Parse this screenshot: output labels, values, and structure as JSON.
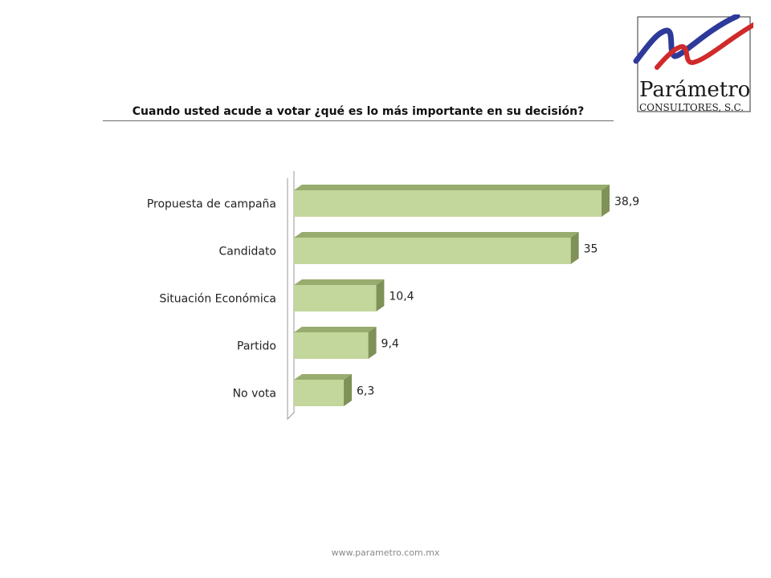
{
  "logo": {
    "name": "Parámetro",
    "tagline": "Consultores, S.C."
  },
  "footer": {
    "url": "www.parametro.com.mx"
  },
  "colors": {
    "bar_front": "#c3d69b",
    "bar_top": "#97ac6e",
    "bar_side": "#7f9157",
    "logo_blue": "#2e3a9a",
    "logo_red": "#d02a2a"
  },
  "chart_data": {
    "type": "bar",
    "orientation": "horizontal",
    "title": "Cuando usted acude a votar ¿qué es lo más importante en su decisión?",
    "categories": [
      "Propuesta de campaña",
      "Candidato",
      "Situación Económica",
      "Partido",
      "No vota"
    ],
    "values": [
      38.9,
      35,
      10.4,
      9.4,
      6.3
    ],
    "value_labels": [
      "38,9",
      "35",
      "10,4",
      "9,4",
      "6,3"
    ],
    "xlim": [
      0,
      39
    ],
    "grid": false,
    "legend": "none"
  }
}
